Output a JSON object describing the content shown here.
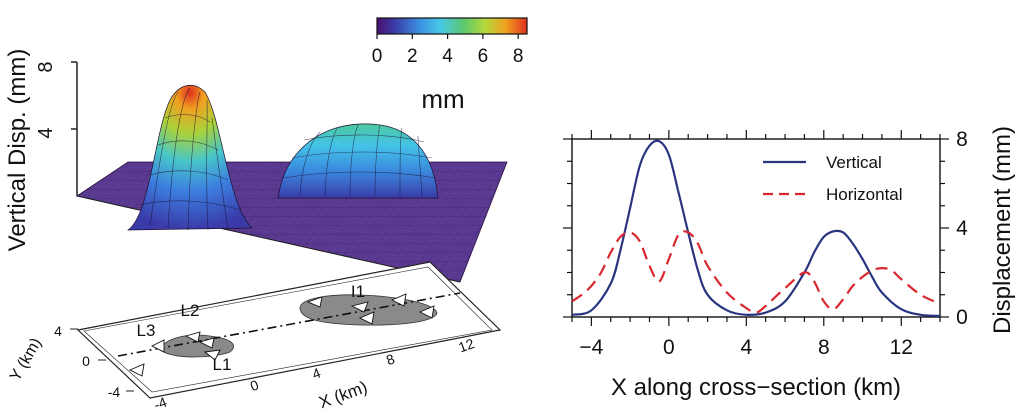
{
  "chart_data": [
    {
      "type": "surface",
      "zlabel": "Vertical Disp. (mm)",
      "zticks": [
        "4",
        "8"
      ],
      "colorbar": {
        "ticks": [
          "0",
          "2",
          "4",
          "6",
          "8"
        ],
        "unit": "mm",
        "range": [
          0,
          8.5
        ],
        "colors": [
          "#4a1070",
          "#3a3ca8",
          "#3c8ee0",
          "#46c8e8",
          "#5cc86e",
          "#b6d83a",
          "#f0a020",
          "#e03020"
        ]
      },
      "peaks": [
        {
          "x": 0,
          "height": 8.0
        },
        {
          "x": 8.5,
          "height": 4.0
        }
      ]
    },
    {
      "type": "map",
      "xlabel": "X (km)",
      "ylabel": "Y (km)",
      "xticks": [
        "-4",
        "0",
        "4",
        "8",
        "12"
      ],
      "yticks": [
        "4",
        "0",
        "-4"
      ],
      "labels": [
        "L1",
        "L2",
        "L3",
        "I1"
      ]
    },
    {
      "type": "line",
      "xlabel": "X along cross−section (km)",
      "ylabel": "Displacement (mm)",
      "xticks": [
        "−4",
        "0",
        "4",
        "8",
        "12"
      ],
      "yticks": [
        "0",
        "4",
        "8"
      ],
      "xlim": [
        -5,
        14
      ],
      "ylim": [
        0,
        8
      ],
      "legend_position": "top-right",
      "series": [
        {
          "name": "Vertical",
          "color": "#2a3580",
          "x": [
            -5,
            -4,
            -3,
            -2.5,
            -2,
            -1.5,
            -1,
            -0.5,
            0,
            0.5,
            1,
            1.5,
            2,
            3,
            4,
            5,
            6,
            7,
            7.5,
            8,
            8.5,
            9,
            9.5,
            10,
            10.5,
            11,
            12,
            13,
            14
          ],
          "y": [
            0.1,
            0.3,
            1.5,
            3.0,
            4.9,
            6.8,
            7.7,
            7.9,
            7.3,
            5.6,
            3.8,
            2.1,
            1.0,
            0.3,
            0.1,
            0.2,
            0.7,
            2.0,
            2.9,
            3.6,
            3.85,
            3.8,
            3.3,
            2.6,
            1.8,
            1.1,
            0.35,
            0.1,
            0.05
          ]
        },
        {
          "name": "Horizontal",
          "color": "#d8282e",
          "x": [
            -5,
            -4.5,
            -4,
            -3.5,
            -3,
            -2.5,
            -2,
            -1.5,
            -1,
            -0.5,
            0,
            0.5,
            1,
            1.5,
            2,
            3,
            4,
            4.5,
            5,
            6,
            7,
            7.5,
            8,
            8.5,
            9,
            9.5,
            10,
            10.5,
            11,
            11.5,
            12,
            13,
            14
          ],
          "y": [
            0.7,
            1.0,
            1.4,
            2.0,
            2.9,
            3.6,
            3.8,
            3.4,
            2.3,
            1.6,
            2.6,
            3.7,
            3.8,
            3.3,
            2.3,
            1.1,
            0.4,
            0.2,
            0.5,
            1.3,
            2.0,
            1.6,
            0.7,
            0.35,
            0.8,
            1.4,
            1.8,
            2.1,
            2.2,
            2.1,
            1.7,
            1.0,
            0.6
          ]
        }
      ]
    }
  ]
}
